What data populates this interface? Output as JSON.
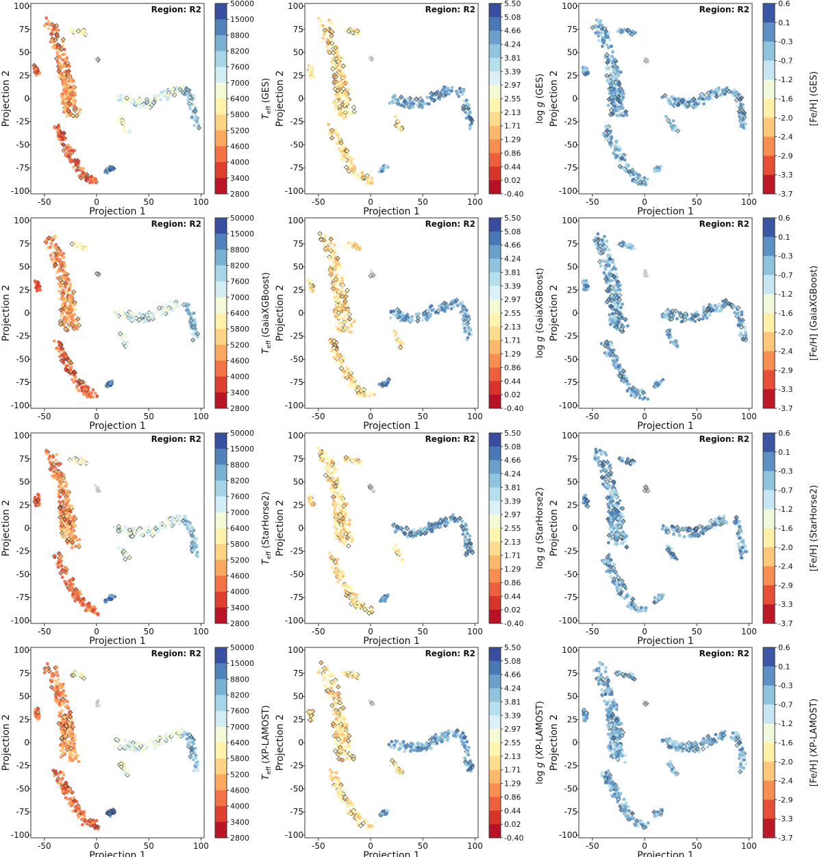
{
  "chart_data": [
    {
      "panel": "teff-ges",
      "type": "scatter",
      "title": "",
      "xlabel": "Projection 1",
      "ylabel": "Projection 2",
      "xlim": [
        -63,
        103
      ],
      "ylim": [
        -103,
        103
      ],
      "xticks": [
        "-50",
        "0",
        "50",
        "100"
      ],
      "yticks": [
        "100",
        "75",
        "50",
        "25",
        "0",
        "-25",
        "-50",
        "-75",
        "-100"
      ],
      "region_label": "Region:  R2",
      "colorbar_label": "T_eff (GES)",
      "colorbar_kind": "teff",
      "colorbar_ticks": [
        "50000",
        "15000",
        "8800",
        "8200",
        "7600",
        "7000",
        "6400",
        "5800",
        "5200",
        "4600",
        "4000",
        "3400",
        "2800"
      ]
    },
    {
      "panel": "logg-ges",
      "type": "scatter",
      "title": "",
      "xlabel": "Projection 1",
      "ylabel": "Projection 2",
      "xlim": [
        -63,
        103
      ],
      "ylim": [
        -103,
        103
      ],
      "xticks": [
        "-50",
        "0",
        "50",
        "100"
      ],
      "yticks": [
        "100",
        "75",
        "50",
        "25",
        "0",
        "-25",
        "-50",
        "-75",
        "-100"
      ],
      "region_label": "Region:  R2",
      "colorbar_label": "log g (GES)",
      "colorbar_kind": "logg",
      "colorbar_ticks": [
        "5.50",
        "5.08",
        "4.66",
        "4.24",
        "3.81",
        "3.39",
        "2.97",
        "2.55",
        "2.13",
        "1.71",
        "1.29",
        "0.86",
        "0.44",
        "0.02",
        "-0.40"
      ]
    },
    {
      "panel": "feh-ges",
      "type": "scatter",
      "title": "",
      "xlabel": "Projection 1",
      "ylabel": "Projection 2",
      "xlim": [
        -63,
        103
      ],
      "ylim": [
        -103,
        103
      ],
      "xticks": [
        "-50",
        "0",
        "50",
        "100"
      ],
      "yticks": [
        "100",
        "75",
        "50",
        "25",
        "0",
        "-25",
        "-50",
        "-75",
        "-100"
      ],
      "region_label": "Region:  R2",
      "colorbar_label": "[Fe/H] (GES)",
      "colorbar_kind": "feh",
      "colorbar_ticks": [
        "0.6",
        "0.1",
        "-0.3",
        "-0.7",
        "-1.2",
        "-1.6",
        "-2.0",
        "-2.4",
        "-2.9",
        "-3.3",
        "-3.7"
      ]
    },
    {
      "panel": "teff-gaiaxgboost",
      "type": "scatter",
      "title": "",
      "xlabel": "Projection 1",
      "ylabel": "Projection 2",
      "xlim": [
        -63,
        103
      ],
      "ylim": [
        -103,
        103
      ],
      "xticks": [
        "-50",
        "0",
        "50",
        "100"
      ],
      "yticks": [
        "100",
        "75",
        "50",
        "25",
        "0",
        "-25",
        "-50",
        "-75",
        "-100"
      ],
      "region_label": "Region:  R2",
      "colorbar_label": "T_eff (GaiaXGBoost)",
      "colorbar_kind": "teff",
      "colorbar_ticks": [
        "50000",
        "15000",
        "8800",
        "8200",
        "7600",
        "7000",
        "6400",
        "5800",
        "5200",
        "4600",
        "4000",
        "3400",
        "2800"
      ]
    },
    {
      "panel": "logg-gaiaxgboost",
      "type": "scatter",
      "title": "",
      "xlabel": "Projection 1",
      "ylabel": "Projection 2",
      "xlim": [
        -63,
        103
      ],
      "ylim": [
        -103,
        103
      ],
      "xticks": [
        "-50",
        "0",
        "50",
        "100"
      ],
      "yticks": [
        "100",
        "75",
        "50",
        "25",
        "0",
        "-25",
        "-50",
        "-75",
        "-100"
      ],
      "region_label": "Region:  R2",
      "colorbar_label": "log g (GaiaXGBoost)",
      "colorbar_kind": "logg",
      "colorbar_ticks": [
        "5.50",
        "5.08",
        "4.66",
        "4.24",
        "3.81",
        "3.39",
        "2.97",
        "2.55",
        "2.13",
        "1.71",
        "1.29",
        "0.86",
        "0.44",
        "0.02",
        "-0.40"
      ]
    },
    {
      "panel": "feh-gaiaxgboost",
      "type": "scatter",
      "title": "",
      "xlabel": "Projection 1",
      "ylabel": "Projection 2",
      "xlim": [
        -63,
        103
      ],
      "ylim": [
        -103,
        103
      ],
      "xticks": [
        "-50",
        "0",
        "50",
        "100"
      ],
      "yticks": [
        "100",
        "75",
        "50",
        "25",
        "0",
        "-25",
        "-50",
        "-75",
        "-100"
      ],
      "region_label": "Region:  R2",
      "colorbar_label": "[Fe/H] (GaiaXGBoost)",
      "colorbar_kind": "feh",
      "colorbar_ticks": [
        "0.6",
        "0.1",
        "-0.3",
        "-0.7",
        "-1.2",
        "-1.6",
        "-2.0",
        "-2.4",
        "-2.9",
        "-3.3",
        "-3.7"
      ]
    },
    {
      "panel": "teff-starhorse2",
      "type": "scatter",
      "title": "",
      "xlabel": "Projection 1",
      "ylabel": "Projection 2",
      "xlim": [
        -63,
        103
      ],
      "ylim": [
        -103,
        103
      ],
      "xticks": [
        "-50",
        "0",
        "50",
        "100"
      ],
      "yticks": [
        "100",
        "75",
        "50",
        "25",
        "0",
        "-25",
        "-50",
        "-75",
        "-100"
      ],
      "region_label": "Region:  R2",
      "colorbar_label": "T_eff (StarHorse2)",
      "colorbar_kind": "teff",
      "colorbar_ticks": [
        "50000",
        "15000",
        "8800",
        "8200",
        "7600",
        "7000",
        "6400",
        "5800",
        "5200",
        "4600",
        "4000",
        "3400",
        "2800"
      ]
    },
    {
      "panel": "logg-starhorse2",
      "type": "scatter",
      "title": "",
      "xlabel": "Projection 1",
      "ylabel": "Projection 2",
      "xlim": [
        -63,
        103
      ],
      "ylim": [
        -103,
        103
      ],
      "xticks": [
        "-50",
        "0",
        "50",
        "100"
      ],
      "yticks": [
        "100",
        "75",
        "50",
        "25",
        "0",
        "-25",
        "-50",
        "-75",
        "-100"
      ],
      "region_label": "Region:  R2",
      "colorbar_label": "log g (StarHorse2)",
      "colorbar_kind": "logg",
      "colorbar_ticks": [
        "5.50",
        "5.08",
        "4.66",
        "4.24",
        "3.81",
        "3.39",
        "2.97",
        "2.55",
        "2.13",
        "1.71",
        "1.29",
        "0.86",
        "0.44",
        "0.02",
        "-0.40"
      ]
    },
    {
      "panel": "feh-starhorse2",
      "type": "scatter",
      "title": "",
      "xlabel": "Projection 1",
      "ylabel": "Projection 2",
      "xlim": [
        -63,
        103
      ],
      "ylim": [
        -103,
        103
      ],
      "xticks": [
        "-50",
        "0",
        "50",
        "100"
      ],
      "yticks": [
        "100",
        "75",
        "50",
        "25",
        "0",
        "-25",
        "-50",
        "-75",
        "-100"
      ],
      "region_label": "Region:  R2",
      "colorbar_label": "[Fe/H] (StarHorse2)",
      "colorbar_kind": "feh",
      "colorbar_ticks": [
        "0.6",
        "0.1",
        "-0.3",
        "-0.7",
        "-1.2",
        "-1.6",
        "-2.0",
        "-2.4",
        "-2.9",
        "-3.3",
        "-3.7"
      ]
    },
    {
      "panel": "teff-xp-lamost",
      "type": "scatter",
      "title": "",
      "xlabel": "Projection 1",
      "ylabel": "Projection 2",
      "xlim": [
        -63,
        103
      ],
      "ylim": [
        -103,
        103
      ],
      "xticks": [
        "-50",
        "0",
        "50",
        "100"
      ],
      "yticks": [
        "100",
        "75",
        "50",
        "25",
        "0",
        "-25",
        "-50",
        "-75",
        "-100"
      ],
      "region_label": "Region:  R2",
      "colorbar_label": "T_eff (XP-LAMOST)",
      "colorbar_kind": "teff",
      "colorbar_ticks": [
        "50000",
        "15000",
        "8800",
        "8200",
        "7600",
        "7000",
        "6400",
        "5800",
        "5200",
        "4600",
        "4000",
        "3400",
        "2800"
      ]
    },
    {
      "panel": "logg-xp-lamost",
      "type": "scatter",
      "title": "",
      "xlabel": "Projection 1",
      "ylabel": "Projection 2",
      "xlim": [
        -63,
        103
      ],
      "ylim": [
        -103,
        103
      ],
      "xticks": [
        "-50",
        "0",
        "50",
        "100"
      ],
      "yticks": [
        "100",
        "75",
        "50",
        "25",
        "0",
        "-25",
        "-50",
        "-75",
        "-100"
      ],
      "region_label": "Region:  R2",
      "colorbar_label": "log g (XP-LAMOST)",
      "colorbar_kind": "logg",
      "colorbar_ticks": [
        "5.50",
        "5.08",
        "4.66",
        "4.24",
        "3.81",
        "3.39",
        "2.97",
        "2.55",
        "2.13",
        "1.71",
        "1.29",
        "0.86",
        "0.44",
        "0.02",
        "-0.40"
      ]
    },
    {
      "panel": "feh-xp-lamost",
      "type": "scatter",
      "title": "",
      "xlabel": "Projection 1",
      "ylabel": "Projection 2",
      "xlim": [
        -63,
        103
      ],
      "ylim": [
        -103,
        103
      ],
      "xticks": [
        "-50",
        "0",
        "50",
        "100"
      ],
      "yticks": [
        "100",
        "75",
        "50",
        "25",
        "0",
        "-25",
        "-50",
        "-75",
        "-100"
      ],
      "region_label": "Region:  R2",
      "colorbar_label": "[Fe/H] (XP-LAMOST)",
      "colorbar_kind": "feh",
      "colorbar_ticks": [
        "0.6",
        "0.1",
        "-0.3",
        "-0.7",
        "-1.2",
        "-1.6",
        "-2.0",
        "-2.4",
        "-2.9",
        "-3.3",
        "-3.7"
      ]
    }
  ],
  "point_clusters": [
    {
      "name": "left-upper-arm",
      "path": [
        [
          -45,
          82
        ],
        [
          -40,
          70
        ],
        [
          -36,
          55
        ],
        [
          -32,
          40
        ],
        [
          -30,
          25
        ],
        [
          -28,
          10
        ],
        [
          -27,
          0
        ]
      ],
      "spread": 7,
      "count": 150,
      "colour_index": 0.25
    },
    {
      "name": "left-mid-body",
      "path": [
        [
          -30,
          25
        ],
        [
          -27,
          5
        ],
        [
          -28,
          -10
        ],
        [
          -22,
          -15
        ]
      ],
      "spread": 9,
      "count": 90,
      "colour_index": 0.3
    },
    {
      "name": "left-lower-arm",
      "path": [
        [
          -38,
          -30
        ],
        [
          -32,
          -45
        ],
        [
          -25,
          -60
        ],
        [
          -18,
          -75
        ],
        [
          -10,
          -85
        ],
        [
          0,
          -90
        ]
      ],
      "spread": 5,
      "count": 110,
      "colour_index": 0.2
    },
    {
      "name": "upper-small-group",
      "path": [
        [
          -25,
          75
        ],
        [
          -15,
          73
        ],
        [
          -10,
          70
        ]
      ],
      "spread": 3,
      "count": 25,
      "colour_index": 0.5
    },
    {
      "name": "far-left-blob",
      "path": [
        [
          -58,
          35
        ],
        [
          -56,
          25
        ]
      ],
      "spread": 3,
      "count": 20,
      "colour_index": 0.2
    },
    {
      "name": "central-arm",
      "path": [
        [
          20,
          0
        ],
        [
          35,
          -5
        ],
        [
          50,
          -5
        ],
        [
          65,
          5
        ],
        [
          80,
          10
        ]
      ],
      "spread": 6,
      "count": 110,
      "colour_index": 0.6
    },
    {
      "name": "right-hook",
      "path": [
        [
          85,
          10
        ],
        [
          90,
          0
        ],
        [
          93,
          -15
        ],
        [
          95,
          -30
        ]
      ],
      "spread": 4,
      "count": 45,
      "colour_index": 0.75
    },
    {
      "name": "lower-blue-knot",
      "path": [
        [
          10,
          -78
        ],
        [
          16,
          -74
        ]
      ],
      "spread": 3,
      "count": 18,
      "colour_index": 0.9
    },
    {
      "name": "central-lower-spur",
      "path": [
        [
          22,
          -20
        ],
        [
          30,
          -35
        ]
      ],
      "spread": 3,
      "count": 18,
      "colour_index": 0.55
    },
    {
      "name": "grey-upper-dots",
      "path": [
        [
          0,
          45
        ],
        [
          2,
          40
        ]
      ],
      "spread": 2,
      "count": 8,
      "colour_index": -1
    }
  ]
}
